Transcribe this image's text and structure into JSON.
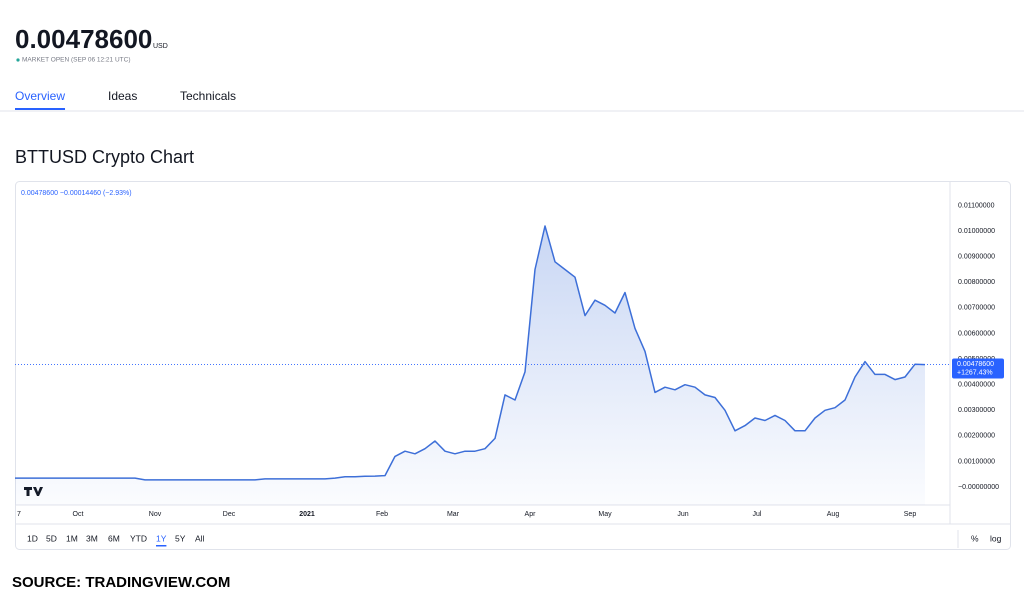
{
  "header": {
    "price": "0.00478600",
    "currency": "USD",
    "status": "MARKET OPEN (SEP 06 12:21 UTC)",
    "tabs": [
      "Overview",
      "Ideas",
      "Technicals"
    ],
    "active_tab": 0
  },
  "chart_data": {
    "type": "line",
    "title": "BTTUSD Crypto Chart",
    "legend_text": "0.00478600 −0.00014460 (−2.93%)",
    "color": "#3d6fd8",
    "values": [
      0.00035,
      0.00035,
      0.00035,
      0.00035,
      0.00035,
      0.00035,
      0.00035,
      0.00035,
      0.00035,
      0.00035,
      0.00035,
      0.00035,
      0.00035,
      0.00028,
      0.00028,
      0.00028,
      0.00028,
      0.00028,
      0.00028,
      0.00028,
      0.00028,
      0.00028,
      0.00028,
      0.00028,
      0.00028,
      0.00032,
      0.00032,
      0.00032,
      0.00032,
      0.00032,
      0.00032,
      0.00032,
      0.00035,
      0.0004,
      0.0004,
      0.00042,
      0.00043,
      0.00045,
      0.0012,
      0.0014,
      0.0013,
      0.0015,
      0.0018,
      0.0014,
      0.0013,
      0.0014,
      0.0014,
      0.0015,
      0.0019,
      0.0036,
      0.0034,
      0.0045,
      0.0085,
      0.0102,
      0.0088,
      0.0085,
      0.0082,
      0.0067,
      0.0073,
      0.0071,
      0.0068,
      0.0076,
      0.0062,
      0.0053,
      0.0037,
      0.0039,
      0.0038,
      0.004,
      0.0039,
      0.0036,
      0.0035,
      0.003,
      0.0022,
      0.0024,
      0.0027,
      0.0026,
      0.0028,
      0.0026,
      0.0022,
      0.0022,
      0.0027,
      0.003,
      0.0031,
      0.0034,
      0.0043,
      0.0049,
      0.0044,
      0.0044,
      0.0042,
      0.0043,
      0.0048,
      0.004786
    ],
    "xtick_labels": [
      "7",
      "Oct",
      "Nov",
      "Dec",
      "2021",
      "Feb",
      "Mar",
      "Apr",
      "May",
      "Jun",
      "Jul",
      "Aug",
      "Sep"
    ],
    "ylim": [
      -0.0007,
      0.0118
    ],
    "yticks": [
      {
        "value": 0.011,
        "label": "0.01100000"
      },
      {
        "value": 0.01,
        "label": "0.01000000"
      },
      {
        "value": 0.009,
        "label": "0.00900000"
      },
      {
        "value": 0.008,
        "label": "0.00800000"
      },
      {
        "value": 0.007,
        "label": "0.00700000"
      },
      {
        "value": 0.006,
        "label": "0.00600000"
      },
      {
        "value": 0.005,
        "label": "0.00500000"
      },
      {
        "value": 0.004,
        "label": "0.00400000"
      },
      {
        "value": 0.003,
        "label": "0.00300000"
      },
      {
        "value": 0.002,
        "label": "0.00200000"
      },
      {
        "value": 0.001,
        "label": "0.00100000"
      },
      {
        "value": 0,
        "label": "−0.00000000"
      }
    ],
    "grid": false,
    "last_price": {
      "value": 0.004786,
      "label": "0.00478600"
    },
    "last_change": "+1267.43%",
    "ranges": [
      "1D",
      "5D",
      "1M",
      "3M",
      "6M",
      "YTD",
      "1Y",
      "5Y",
      "All"
    ],
    "selected_range": 6,
    "scale_options": [
      "%",
      "log"
    ]
  },
  "source": "SOURCE: TRADINGVIEW.COM"
}
